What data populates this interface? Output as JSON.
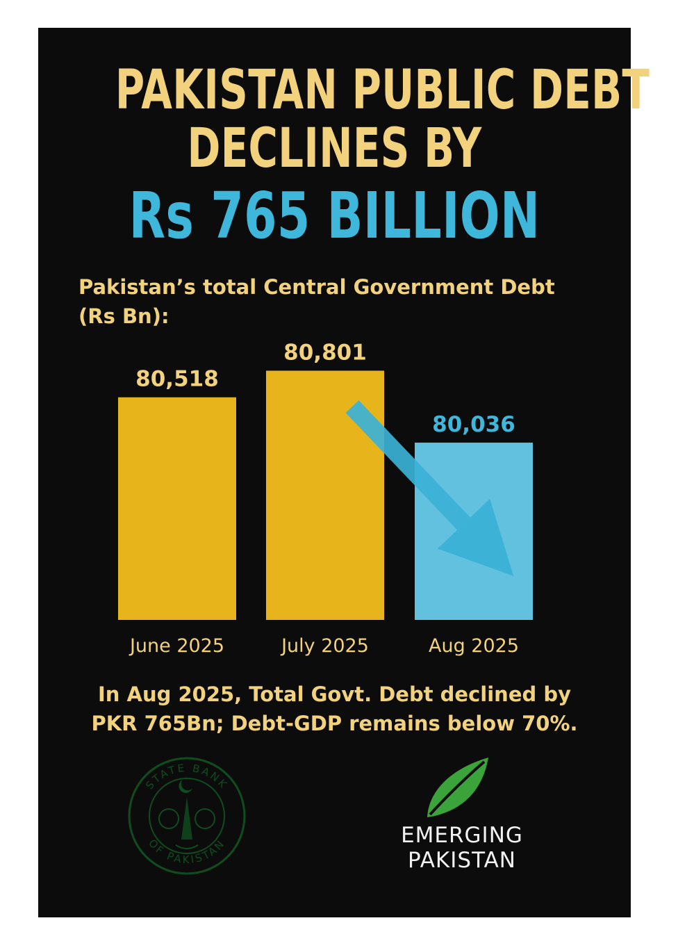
{
  "headline": {
    "line1": "PAKISTAN PUBLIC DEBT",
    "line2": "DECLINES BY",
    "line3": "Rs 765 BILLION"
  },
  "colors": {
    "background": "#0c0c0c",
    "headline": "#f3d27d",
    "accent_blue": "#3eb7db",
    "bar_gold": "#e8b41b",
    "bar_blue": "#62c1df",
    "arrow_blue": "#3bb2d6",
    "seal_green": "#0f4d1f",
    "leaf_green": "#3aa33a"
  },
  "chart_data": {
    "type": "bar",
    "title": "Pakistan’s total Central Government Debt (Rs Bn):",
    "categories": [
      "June 2025",
      "July 2025",
      "Aug 2025"
    ],
    "values": [
      80518,
      80801,
      80036
    ],
    "value_labels": [
      "80,518",
      "80,801",
      "80,036"
    ],
    "bar_colors": [
      "#e8b41b",
      "#e8b41b",
      "#62c1df"
    ],
    "label_colors": [
      "#f3d27d",
      "#f3d27d",
      "#3eb7db"
    ],
    "annotation": "downward arrow from July 2025 to Aug 2025",
    "ylim": [
      78150,
      80900
    ],
    "grid": false
  },
  "footnote": {
    "line1": "In Aug 2025, Total Govt. Debt declined by",
    "line2": "PKR 765Bn; Debt-GDP remains below 70%."
  },
  "seal": {
    "text_top": "STATE BANK",
    "text_bottom": "OF PAKISTAN",
    "icon": "state-bank-seal-icon"
  },
  "brand": {
    "line1": "EMERGING",
    "line2": "PAKISTAN",
    "icon": "leaf-icon"
  }
}
